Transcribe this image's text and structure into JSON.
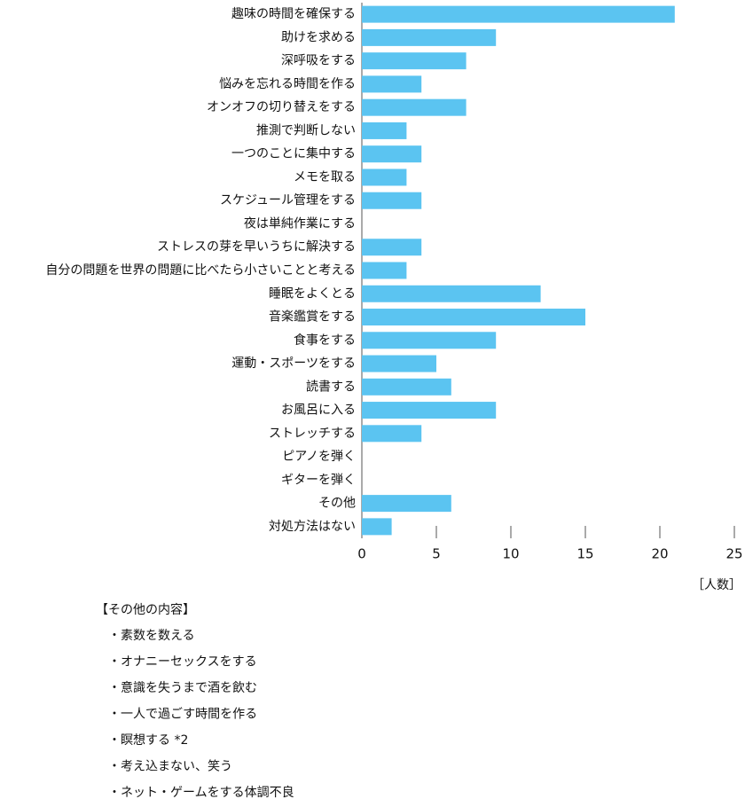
{
  "chart_data": {
    "type": "bar",
    "orientation": "horizontal",
    "categories": [
      "趣味の時間を確保する",
      "助けを求める",
      "深呼吸をする",
      "悩みを忘れる時間を作る",
      "オンオフの切り替えをする",
      "推測で判断しない",
      "一つのことに集中する",
      "メモを取る",
      "スケジュール管理をする",
      "夜は単純作業にする",
      "ストレスの芽を早いうちに解決する",
      "自分の問題を世界の問題に比べたら小さいことと考える",
      "睡眠をよくとる",
      "音楽鑑賞をする",
      "食事をする",
      "運動・スポーツをする",
      "読書する",
      "お風呂に入る",
      "ストレッチする",
      "ピアノを弾く",
      "ギターを弾く",
      "その他",
      "対処方法はない"
    ],
    "values": [
      21,
      9,
      7,
      4,
      7,
      3,
      4,
      3,
      4,
      0,
      4,
      3,
      12,
      15,
      9,
      5,
      6,
      9,
      4,
      0,
      0,
      6,
      2
    ],
    "color": "#5bc4f1",
    "xlim": [
      0,
      25
    ],
    "xticks": [
      0,
      5,
      10,
      15,
      20,
      25
    ],
    "x_label": "［人数］"
  },
  "notes": {
    "title": "【その他の内容】",
    "items": [
      "・素数を数える",
      "・オナニーセックスをする",
      "・意識を失うまで酒を飲む",
      "・一人で過ごす時間を作る",
      "・瞑想する *2",
      "・考え込まない、笑う",
      "・ネット・ゲームをする体調不良"
    ]
  }
}
